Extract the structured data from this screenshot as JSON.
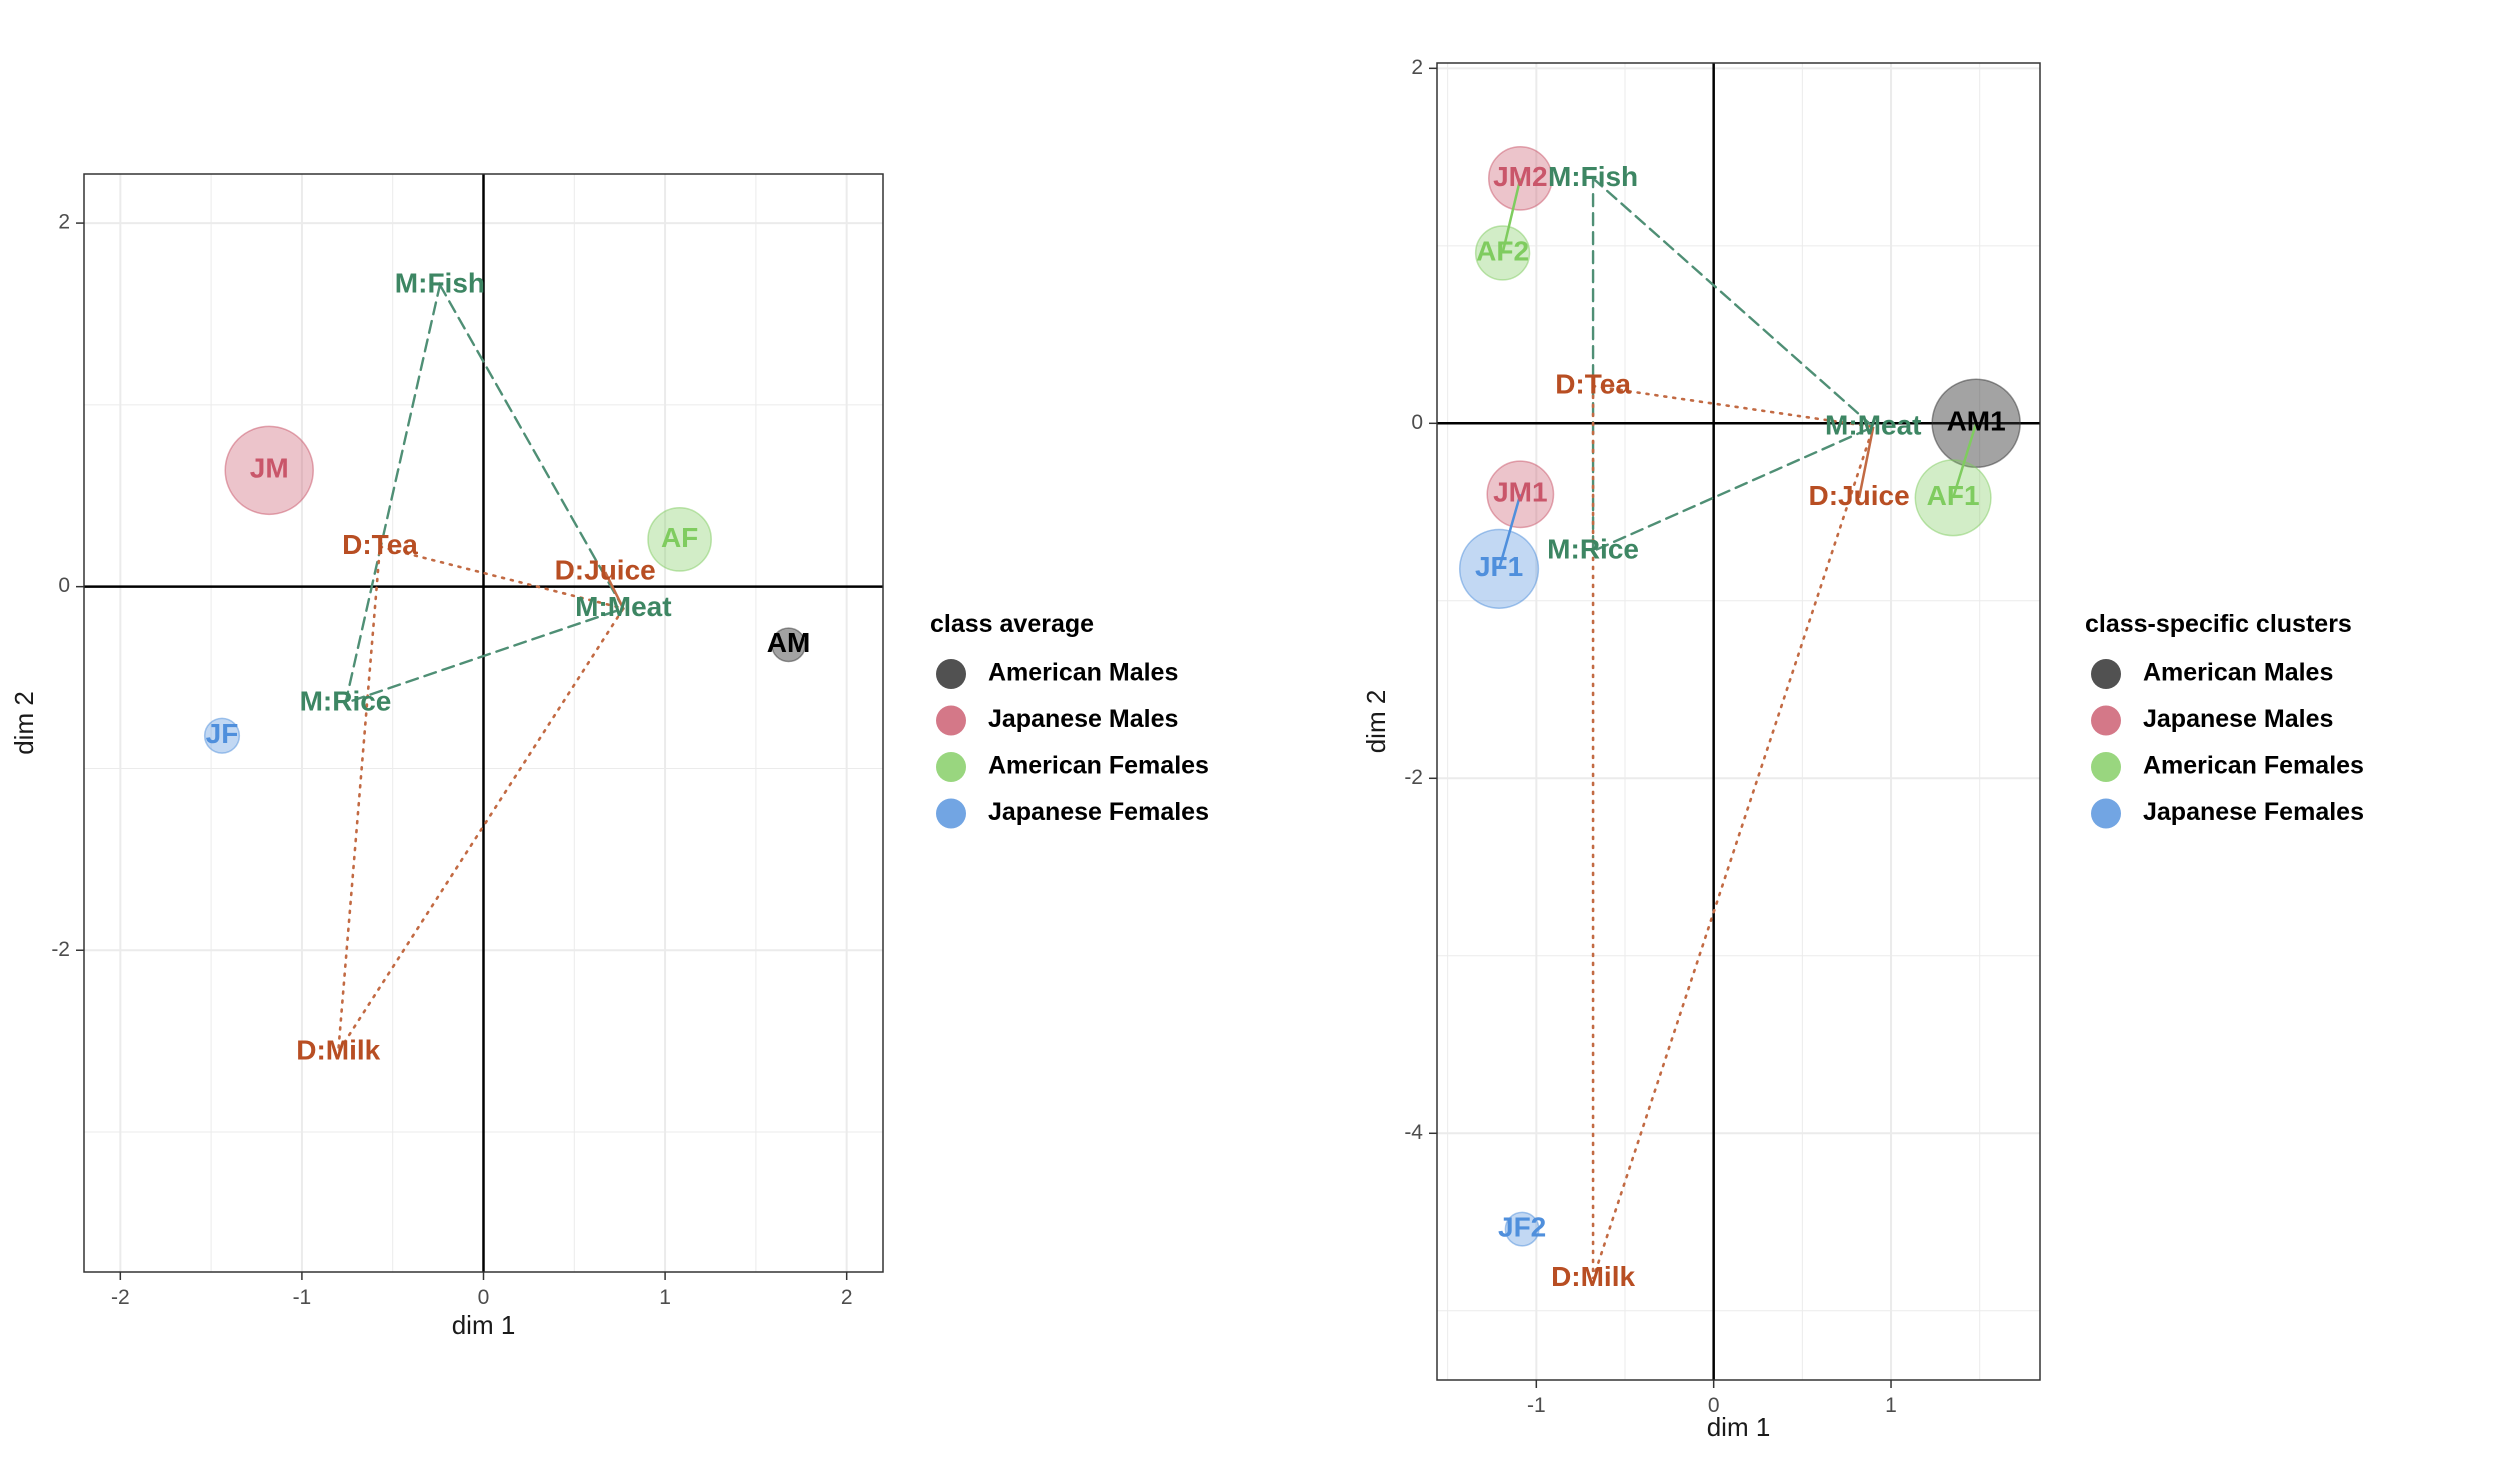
{
  "colors": {
    "American Males": "#333333",
    "Japanese Males": "#c9566a",
    "American Females": "#7fcc5f",
    "Japanese Females": "#4f8fdc",
    "meal_label": "#3d8663",
    "drink_label": "#b84e23",
    "meal_line": "#4f8f75",
    "drink_line": "#c26a43"
  },
  "chart_data": [
    {
      "type": "scatter",
      "title": "",
      "xlabel": "dim 1",
      "ylabel": "dim 2",
      "xlim": [
        -2.2,
        2.2
      ],
      "ylim": [
        -3.77,
        2.27
      ],
      "xticks": [
        -2,
        -1,
        0,
        1,
        2
      ],
      "yticks": [
        -2,
        0,
        2
      ],
      "xtick_labels": [
        "-2",
        "-1",
        "0",
        "1",
        "2"
      ],
      "ytick_labels": [
        "-2",
        "0",
        "2"
      ],
      "grid": true,
      "legend": {
        "title": "class average",
        "placement": "right",
        "entries": [
          "American Males",
          "Japanese Males",
          "American Females",
          "Japanese Females"
        ]
      },
      "clusters": [
        {
          "label": "AM",
          "class": "American Males",
          "x": 1.68,
          "y": -0.32,
          "size": 0.12
        },
        {
          "label": "JM",
          "class": "Japanese Males",
          "x": -1.18,
          "y": 0.64,
          "size": 1.0
        },
        {
          "label": "AF",
          "class": "American Females",
          "x": 1.08,
          "y": 0.26,
          "size": 0.6
        },
        {
          "label": "JF",
          "class": "Japanese Females",
          "x": -1.44,
          "y": -0.82,
          "size": 0.14
        }
      ],
      "variables": [
        {
          "label": "M:Fish",
          "group": "meal",
          "x": -0.24,
          "y": 1.66
        },
        {
          "label": "M:Meat",
          "group": "meal",
          "x": 0.77,
          "y": -0.12
        },
        {
          "label": "M:Rice",
          "group": "meal",
          "x": -0.76,
          "y": -0.64
        },
        {
          "label": "D:Tea",
          "group": "drink",
          "x": -0.57,
          "y": 0.22
        },
        {
          "label": "D:Juice",
          "group": "drink",
          "x": 0.67,
          "y": 0.08
        },
        {
          "label": "D:Milk",
          "group": "drink",
          "x": -0.8,
          "y": -2.56
        }
      ],
      "triangles": [
        {
          "group": "meal",
          "points": [
            [
              -0.24,
              1.66
            ],
            [
              0.77,
              -0.12
            ],
            [
              -0.76,
              -0.64
            ]
          ]
        },
        {
          "group": "drink",
          "points": [
            [
              -0.57,
              0.22
            ],
            [
              0.77,
              -0.12
            ],
            [
              -0.8,
              -2.56
            ]
          ]
        }
      ],
      "links": [
        {
          "from": [
            0.67,
            0.08
          ],
          "to": [
            0.77,
            -0.12
          ]
        }
      ]
    },
    {
      "type": "scatter",
      "title": "",
      "xlabel": "dim 1",
      "ylabel": "dim 2",
      "xlim": [
        -1.56,
        1.84
      ],
      "ylim": [
        -5.39,
        2.03
      ],
      "xticks": [
        -1,
        0,
        1
      ],
      "yticks": [
        -4,
        -2,
        0,
        2
      ],
      "xtick_labels": [
        "-1",
        "0",
        "1"
      ],
      "ytick_labels": [
        "-4",
        "-2",
        "0",
        "2"
      ],
      "grid": true,
      "legend": {
        "title": "class-specific clusters",
        "placement": "right",
        "entries": [
          "American Males",
          "Japanese Males",
          "American Females",
          "Japanese Females"
        ]
      },
      "clusters": [
        {
          "label": "AM1",
          "class": "American Males",
          "x": 1.48,
          "y": 0.0,
          "size": 1.0
        },
        {
          "label": "JM2",
          "class": "Japanese Males",
          "x": -1.09,
          "y": 1.38,
          "size": 0.6
        },
        {
          "label": "AF2",
          "class": "American Females",
          "x": -1.19,
          "y": 0.96,
          "size": 0.45
        },
        {
          "label": "JM1",
          "class": "Japanese Males",
          "x": -1.09,
          "y": -0.4,
          "size": 0.65
        },
        {
          "label": "JF1",
          "class": "Japanese Females",
          "x": -1.21,
          "y": -0.82,
          "size": 0.85
        },
        {
          "label": "AF1",
          "class": "American Females",
          "x": 1.35,
          "y": -0.42,
          "size": 0.8
        },
        {
          "label": "JF2",
          "class": "Japanese Females",
          "x": -1.08,
          "y": -4.54,
          "size": 0.12
        }
      ],
      "variables": [
        {
          "label": "M:Fish",
          "group": "meal",
          "x": -0.68,
          "y": 1.38
        },
        {
          "label": "M:Meat",
          "group": "meal",
          "x": 0.9,
          "y": -0.02
        },
        {
          "label": "M:Rice",
          "group": "meal",
          "x": -0.68,
          "y": -0.72
        },
        {
          "label": "D:Tea",
          "group": "drink",
          "x": -0.68,
          "y": 0.21
        },
        {
          "label": "D:Juice",
          "group": "drink",
          "x": 0.82,
          "y": -0.42
        },
        {
          "label": "D:Milk",
          "group": "drink",
          "x": -0.68,
          "y": -4.82
        }
      ],
      "triangles": [
        {
          "group": "meal",
          "points": [
            [
              -0.68,
              1.38
            ],
            [
              0.9,
              -0.02
            ],
            [
              -0.68,
              -0.72
            ]
          ]
        },
        {
          "group": "drink",
          "points": [
            [
              -0.68,
              0.21
            ],
            [
              0.9,
              -0.02
            ],
            [
              -0.68,
              -4.82
            ]
          ]
        }
      ],
      "links": [
        {
          "from": [
            0.82,
            -0.42
          ],
          "to": [
            0.9,
            -0.02
          ]
        }
      ]
    }
  ]
}
